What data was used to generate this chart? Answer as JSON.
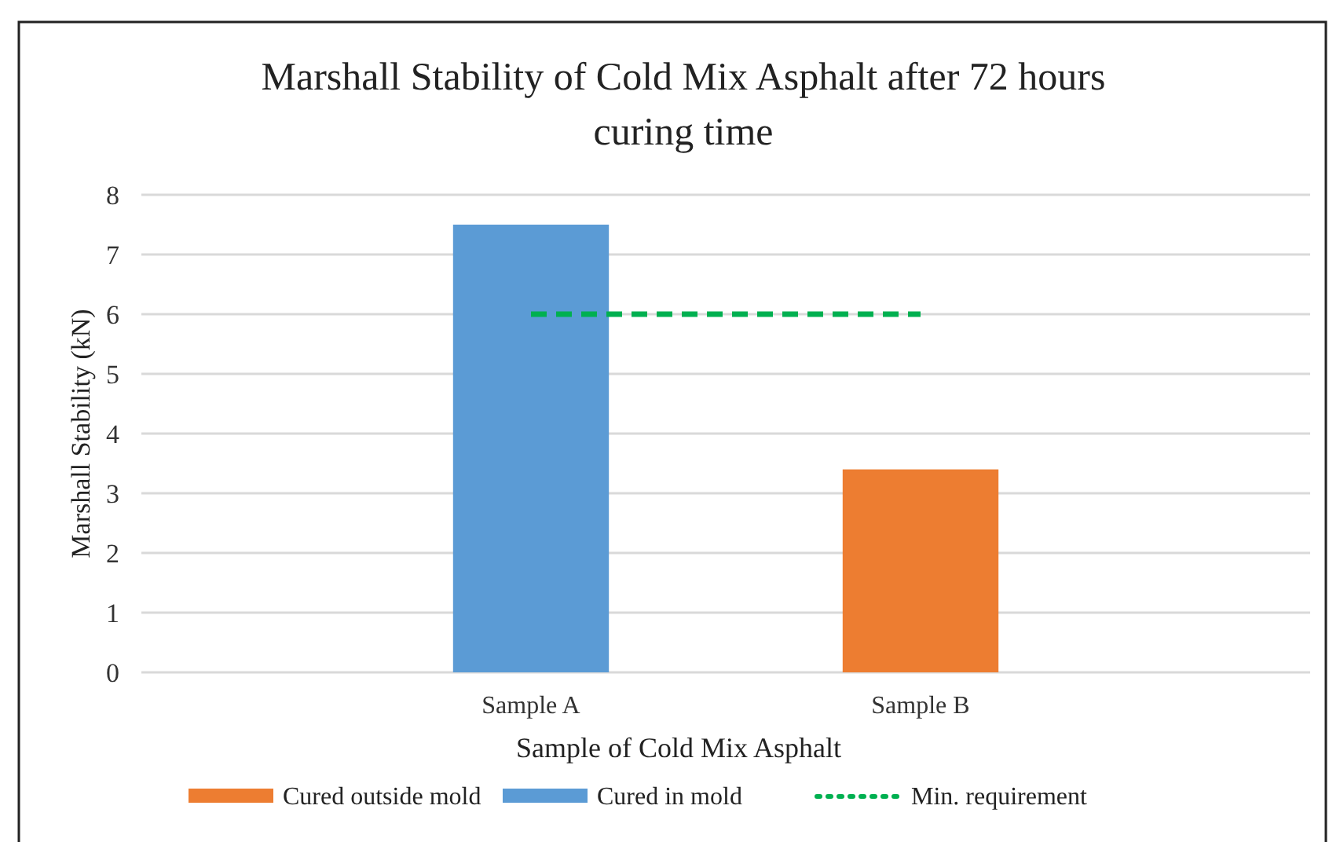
{
  "chart_data": {
    "type": "bar",
    "title": "Marshall Stability of Cold Mix Asphalt after 72 hours curing time",
    "xlabel": "Sample of Cold Mix Asphalt",
    "ylabel": "Marshall Stability (kN)",
    "categories": [
      "Sample A",
      "Sample B"
    ],
    "stacked": true,
    "series": [
      {
        "name": "Cured outside mold",
        "color": "#ed7d31",
        "values": [
          null,
          3.4
        ]
      },
      {
        "name": "Cured in mold",
        "color": "#5b9bd5",
        "values": [
          7.5,
          null
        ]
      },
      {
        "name": "Min. requirement",
        "type": "line",
        "color": "#00b050",
        "line_style": "dashed",
        "values": [
          6,
          6
        ]
      }
    ],
    "ylim": [
      0,
      8
    ],
    "yticks": [
      0,
      1,
      2,
      3,
      4,
      5,
      6,
      7,
      8
    ],
    "grid": "y",
    "legend": "bottom"
  }
}
